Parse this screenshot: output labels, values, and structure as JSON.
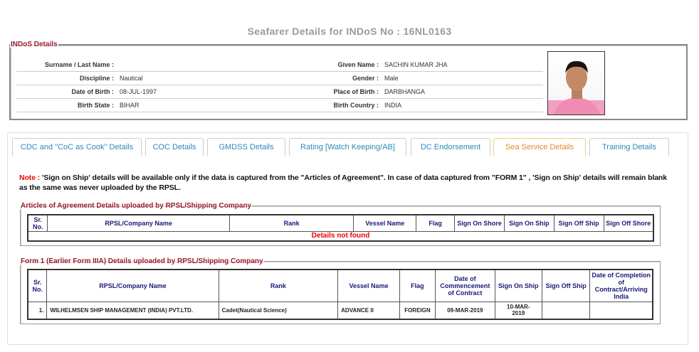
{
  "title": "Seafarer Details for INDoS No : 16NL0163",
  "indos": {
    "legend": "INDoS Details",
    "rows": [
      {
        "l1": "Surname / Last Name :",
        "v1": "",
        "l2": "Given Name :",
        "v2": "SACHIN KUMAR JHA"
      },
      {
        "l1": "Discipline :",
        "v1": "Nautical",
        "l2": "Gender :",
        "v2": "Male"
      },
      {
        "l1": "Date of Birth :",
        "v1": "08-JUL-1997",
        "l2": "Place of Birth :",
        "v2": "DARBHANGA"
      },
      {
        "l1": "Birth State :",
        "v1": "BIHAR",
        "l2": "Birth Country :",
        "v2": "INDIA"
      }
    ]
  },
  "tabs": [
    "CDC and \"CoC as Cook\" Details",
    "COC Details",
    "GMDSS Details",
    "Rating [Watch Keeping/AB]",
    "DC Endorsement",
    "Sea Service Details",
    "Training Details"
  ],
  "active_tab": "Sea Service Details",
  "note": {
    "label": "Note :",
    "text": " 'Sign on Ship' details will be available only if the data is captured from the \"Articles of Agreement\". In case of data captured from \"FORM 1\" , 'Sign on Ship' details will remain blank as the same was never uploaded by the RPSL."
  },
  "aoa": {
    "legend": "Articles of Agreement Details uploaded by RPSL/Shipping Company",
    "headers": [
      "Sr. No.",
      "RPSL/Company Name",
      "Rank",
      "Vessel Name",
      "Flag",
      "Sign On Shore",
      "Sign On Ship",
      "Sign Off Ship",
      "Sign Off Shore"
    ],
    "empty": "Details not found"
  },
  "form1": {
    "legend": "Form 1 (Earlier Form IIIA) Details uploaded by RPSL/Shipping Company",
    "headers": [
      "Sr. No.",
      "RPSL/Company Name",
      "Rank",
      "Vessel Name",
      "Flag",
      "Date of Commencement of Contract",
      "Sign On Ship",
      "Sign Off Ship",
      "Date of Completion of Contract/Arriving India"
    ],
    "rows": [
      [
        "1.",
        "WILHELMSEN SHIP MANAGEMENT (INDIA) PVT.LTD.",
        "Cadet(Nautical Science)",
        "ADVANCE II",
        "FOREIGN",
        "09-MAR-2019",
        "10-MAR-2019",
        "",
        ""
      ]
    ]
  }
}
